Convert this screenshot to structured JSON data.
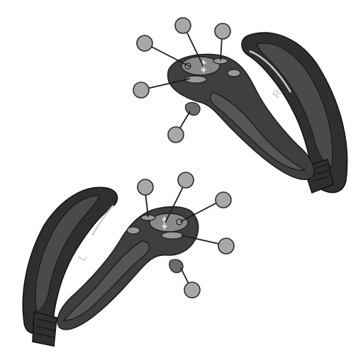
{
  "diagram": {
    "controllers": [
      {
        "side_label": "R"
      },
      {
        "side_label": "L"
      }
    ]
  }
}
